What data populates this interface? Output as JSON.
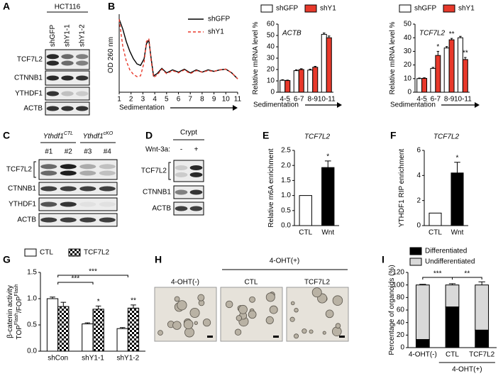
{
  "panel_labels": [
    "A",
    "B",
    "C",
    "D",
    "E",
    "F",
    "G",
    "H",
    "I"
  ],
  "blot_a": {
    "header": "HCT116",
    "lanes": [
      "shGFP",
      "shY1-1",
      "shY1-2"
    ],
    "rows": [
      "TCF7L2",
      "CTNNB1",
      "YTHDF1",
      "ACTB"
    ]
  },
  "blot_c": {
    "groups": [
      {
        "gene": "Ythdf1",
        "genotype": "CTL"
      },
      {
        "gene": "Ythdf1",
        "genotype": "cKO"
      }
    ],
    "lanes": [
      "#1",
      "#2",
      "#3",
      "#4"
    ],
    "rows": [
      "TCF7L2",
      "CTNNB1",
      "YTHDF1",
      "ACTB"
    ]
  },
  "blot_d": {
    "header": "Crypt",
    "treatment": "Wnt-3a:",
    "lanes": [
      "-",
      "+"
    ],
    "rows": [
      "TCF7L2",
      "CTNNB1",
      "ACTB"
    ]
  },
  "images_h": {
    "left": "4-OHT(-)",
    "group": "4-OHT(+)",
    "right": [
      "CTL",
      "TCF7L2"
    ]
  },
  "chart_data": [
    {
      "type": "line",
      "xlabel": "Sedimentation",
      "ylabel": "OD 260 nm",
      "legend": "upper right",
      "x": [
        1.0,
        1.3,
        1.6,
        1.9,
        2.2,
        2.5,
        2.8,
        3.1,
        3.3,
        3.5,
        3.7,
        3.9,
        4.2,
        4.6,
        5.0,
        5.5,
        6.0,
        6.5,
        7.0,
        7.5,
        8.0,
        8.5,
        9.0,
        9.5,
        10,
        10.5,
        11
      ],
      "xlim": [
        1,
        11
      ],
      "xticks": [
        1,
        2,
        3,
        4,
        5,
        6,
        7,
        8,
        9,
        10,
        11
      ],
      "ylim": [
        0,
        1
      ],
      "series": [
        {
          "name": "shGFP",
          "color": "#000000",
          "linestyle": "solid",
          "values": [
            0.98,
            0.85,
            0.68,
            0.55,
            0.45,
            0.38,
            0.36,
            0.45,
            0.65,
            0.7,
            0.45,
            0.22,
            0.25,
            0.32,
            0.26,
            0.3,
            0.27,
            0.31,
            0.26,
            0.3,
            0.27,
            0.3,
            0.28,
            0.3,
            0.31,
            0.26,
            0.18
          ]
        },
        {
          "name": "shY1",
          "color": "#e8392b",
          "linestyle": "dashed",
          "values": [
            0.98,
            0.62,
            0.42,
            0.3,
            0.24,
            0.21,
            0.22,
            0.4,
            0.68,
            0.72,
            0.42,
            0.2,
            0.23,
            0.31,
            0.25,
            0.29,
            0.26,
            0.3,
            0.25,
            0.29,
            0.27,
            0.29,
            0.28,
            0.3,
            0.31,
            0.26,
            0.18
          ]
        }
      ]
    },
    {
      "type": "bar",
      "title": "ACTB",
      "categories": [
        "4-5",
        "6-7",
        "8-9",
        "10-11"
      ],
      "xlabel": "Sedimentation",
      "ylabel": "Relative mRNA level %",
      "legend": "top",
      "ylim": [
        0,
        60
      ],
      "yticks": [
        0,
        10,
        20,
        30,
        40,
        50,
        60
      ],
      "series": [
        {
          "name": "shGFP",
          "color": "#ffffff",
          "values": [
            10.5,
            19,
            19.5,
            51
          ],
          "errors": [
            0.5,
            0.8,
            0.8,
            1.2
          ]
        },
        {
          "name": "shY1",
          "color": "#e8392b",
          "values": [
            10.3,
            20,
            22,
            48
          ],
          "errors": [
            0.4,
            0.7,
            0.8,
            1.5
          ]
        }
      ]
    },
    {
      "type": "bar",
      "title": "TCF7L2",
      "categories": [
        "4-5",
        "6-7",
        "8-9",
        "10-11"
      ],
      "xlabel": "Sedimentation",
      "ylabel": "Relative mRNA level %",
      "legend": "top",
      "ylim": [
        0,
        50
      ],
      "yticks": [
        0,
        10,
        20,
        30,
        40,
        50
      ],
      "series": [
        {
          "name": "shGFP",
          "color": "#ffffff",
          "values": [
            10,
            17.5,
            32.5,
            40
          ],
          "errors": [
            0.4,
            0.7,
            1,
            1
          ]
        },
        {
          "name": "shY1",
          "color": "#e8392b",
          "values": [
            10.2,
            27,
            38.5,
            24
          ],
          "errors": [
            0.4,
            3,
            1,
            1.5
          ],
          "significance": [
            null,
            "*",
            "**",
            "**"
          ]
        }
      ]
    },
    {
      "type": "bar",
      "title": "TCF7L2",
      "categories": [
        "CTL",
        "Wnt"
      ],
      "ylabel": "Relative m6A enrichment",
      "ylim": [
        0,
        2.5
      ],
      "yticks": [
        {
          "value": 0,
          "label": "0.0"
        },
        {
          "value": 0.5,
          "label": "0.5"
        },
        {
          "value": 1,
          "label": "1.0"
        },
        {
          "value": 1.5,
          "label": "1.5"
        },
        {
          "value": 2,
          "label": "2.0"
        },
        {
          "value": 2.5,
          "label": "2.5"
        }
      ],
      "values": [
        1,
        1.93
      ],
      "errors": [
        null,
        0.22
      ],
      "colors": [
        "#ffffff",
        "#000000"
      ],
      "significance": [
        null,
        "*"
      ]
    },
    {
      "type": "bar",
      "title": "TCF7L2",
      "categories": [
        "CTL",
        "Wnt"
      ],
      "ylabel": "YTHDF1 RIP enrichment",
      "ylim": [
        0,
        6
      ],
      "yticks": [
        0,
        2,
        4,
        6
      ],
      "values": [
        1,
        4.2
      ],
      "errors": [
        null,
        0.85
      ],
      "colors": [
        "#ffffff",
        "#000000"
      ],
      "significance": [
        null,
        "*"
      ]
    },
    {
      "type": "bar",
      "categories": [
        "shCon",
        "shY1-1",
        "shY1-2"
      ],
      "ylabel": "β-catenin activity",
      "ylabel_ratio": [
        "TOP",
        "Flash",
        "/FOP",
        "Flash"
      ],
      "legend": "top",
      "ylim": [
        0,
        1.5
      ],
      "yticks": [
        {
          "value": 0,
          "label": "0.0"
        },
        {
          "value": 0.5,
          "label": "0.5"
        },
        {
          "value": 1,
          "label": "1.0"
        },
        {
          "value": 1.5,
          "label": "1.5"
        }
      ],
      "series": [
        {
          "name": "CTL",
          "color": "#ffffff",
          "values": [
            1.0,
            0.52,
            0.43
          ],
          "errors": [
            0.03,
            0.02,
            0.02
          ]
        },
        {
          "name": "TCF7L2",
          "color": "#000000",
          "pattern": "checker",
          "values": [
            0.85,
            0.8,
            0.82
          ],
          "errors": [
            0.08,
            0.06,
            0.06
          ],
          "significance": [
            null,
            "*",
            "**"
          ]
        }
      ],
      "brackets": [
        {
          "label": "***",
          "categories": [
            "shCon",
            "shY1-1"
          ]
        },
        {
          "label": "***",
          "categories": [
            "shCon",
            "shY1-2"
          ]
        }
      ]
    },
    {
      "type": "bar",
      "stacked": true,
      "categories": [
        "4-OHT(-)",
        "CTL",
        "TCF7L2"
      ],
      "ylabel": "Percentage of organoids (%)",
      "legend": "upper left",
      "ylim": [
        0,
        120
      ],
      "yticks": [
        0,
        20,
        40,
        60,
        80,
        100,
        120
      ],
      "series": [
        {
          "name": "Differentiated",
          "color": "#000000",
          "values": [
            13,
            65,
            28
          ],
          "errors": [
            2,
            3,
            5
          ]
        },
        {
          "name": "Undifferentiated",
          "color": "#d9d9d9",
          "values": [
            87,
            35,
            72
          ],
          "errors": [
            1,
            2,
            5
          ]
        }
      ],
      "brackets": [
        {
          "label": "***",
          "categories": [
            "4-OHT(-)",
            "CTL"
          ]
        },
        {
          "label": "**",
          "categories": [
            "CTL",
            "TCF7L2"
          ]
        }
      ],
      "group_label": {
        "text": "4-OHT(+)",
        "categories": [
          "CTL",
          "TCF7L2"
        ]
      }
    }
  ]
}
